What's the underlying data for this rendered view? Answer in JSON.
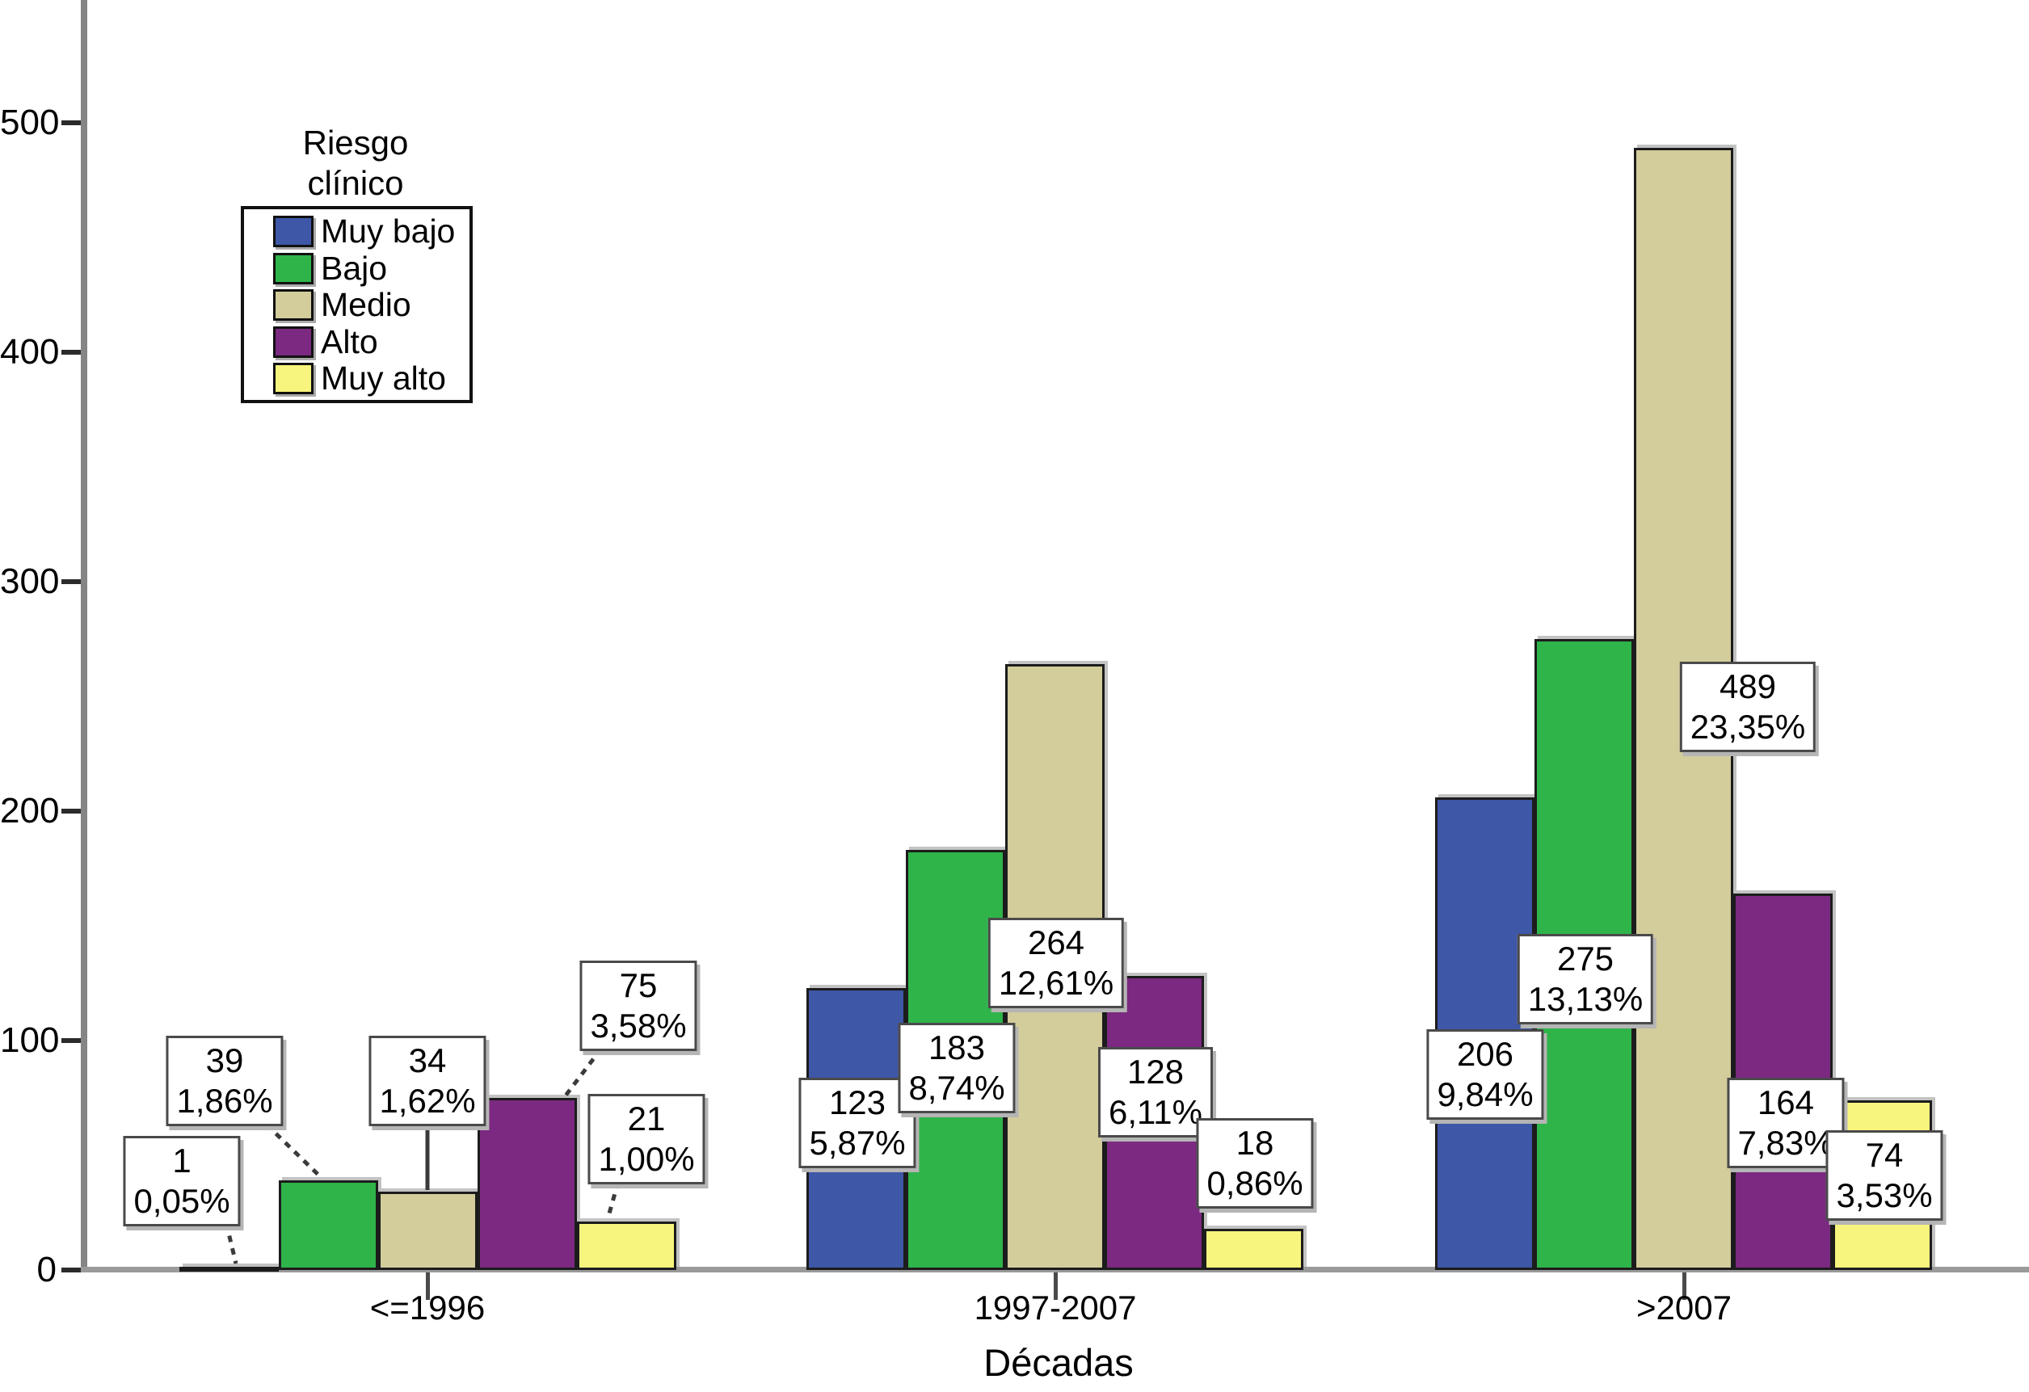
{
  "chart_data": {
    "type": "bar",
    "title": "",
    "xlabel": "Décadas",
    "ylabel": "",
    "categories": [
      "<=1996",
      "1997-2007",
      ">2007"
    ],
    "yticks": [
      0,
      100,
      200,
      300,
      400,
      500
    ],
    "ylim": [
      0,
      550
    ],
    "grid": "off",
    "legend_title": "Riesgo clínico",
    "legend_position": "upper-left-inside",
    "series": [
      {
        "name": "Muy bajo",
        "color": "#3E57A7",
        "values": [
          1,
          123,
          206
        ],
        "percents": [
          "0,05%",
          "5,87%",
          "9,84%"
        ]
      },
      {
        "name": "Bajo",
        "color": "#2FB44A",
        "values": [
          39,
          183,
          275
        ],
        "percents": [
          "1,86%",
          "8,74%",
          "13,13%"
        ]
      },
      {
        "name": "Medio",
        "color": "#D3CC9B",
        "values": [
          34,
          264,
          489
        ],
        "percents": [
          "1,62%",
          "12,61%",
          "23,35%"
        ]
      },
      {
        "name": "Alto",
        "color": "#7B2981",
        "values": [
          75,
          128,
          164
        ],
        "percents": [
          "3,58%",
          "6,11%",
          "7,83%"
        ]
      },
      {
        "name": "Muy alto",
        "color": "#F8F57E",
        "values": [
          21,
          18,
          74
        ],
        "percents": [
          "1,00%",
          "0,86%",
          "3,53%"
        ]
      }
    ]
  }
}
